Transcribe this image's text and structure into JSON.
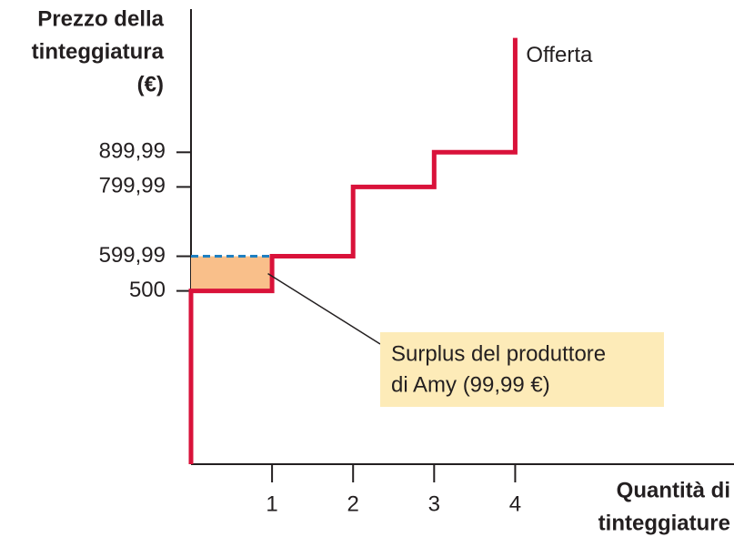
{
  "chart_data": {
    "type": "line",
    "y_label": [
      "Prezzo della",
      "tinteggiatura",
      "(€)"
    ],
    "x_label": [
      "Quantità di",
      "tinteggiature"
    ],
    "xlim": [
      0,
      6.7
    ],
    "ylim": [
      0,
      1300
    ],
    "xticks": [
      1,
      2,
      3,
      4
    ],
    "yticks": [
      {
        "value": 500,
        "label": "500"
      },
      {
        "value": 599.99,
        "label": "599,99"
      },
      {
        "value": 799.99,
        "label": "799,99"
      },
      {
        "value": 899.99,
        "label": "899,99"
      }
    ],
    "series": [
      {
        "name": "Offerta",
        "color": "#d9123a",
        "x": [
          0,
          0,
          1,
          1,
          2,
          2,
          3,
          3,
          4,
          4
        ],
        "values": [
          0,
          500,
          500,
          599.99,
          599.99,
          799.99,
          799.99,
          899.99,
          899.99,
          1230
        ]
      }
    ],
    "surplus_color": "#f9bf8a",
    "dash_color": "#1f7fc0",
    "annotation": [
      "Surplus del produttore",
      "di Amy (99,99 €)"
    ],
    "annotation_color": "#fdebb8"
  }
}
